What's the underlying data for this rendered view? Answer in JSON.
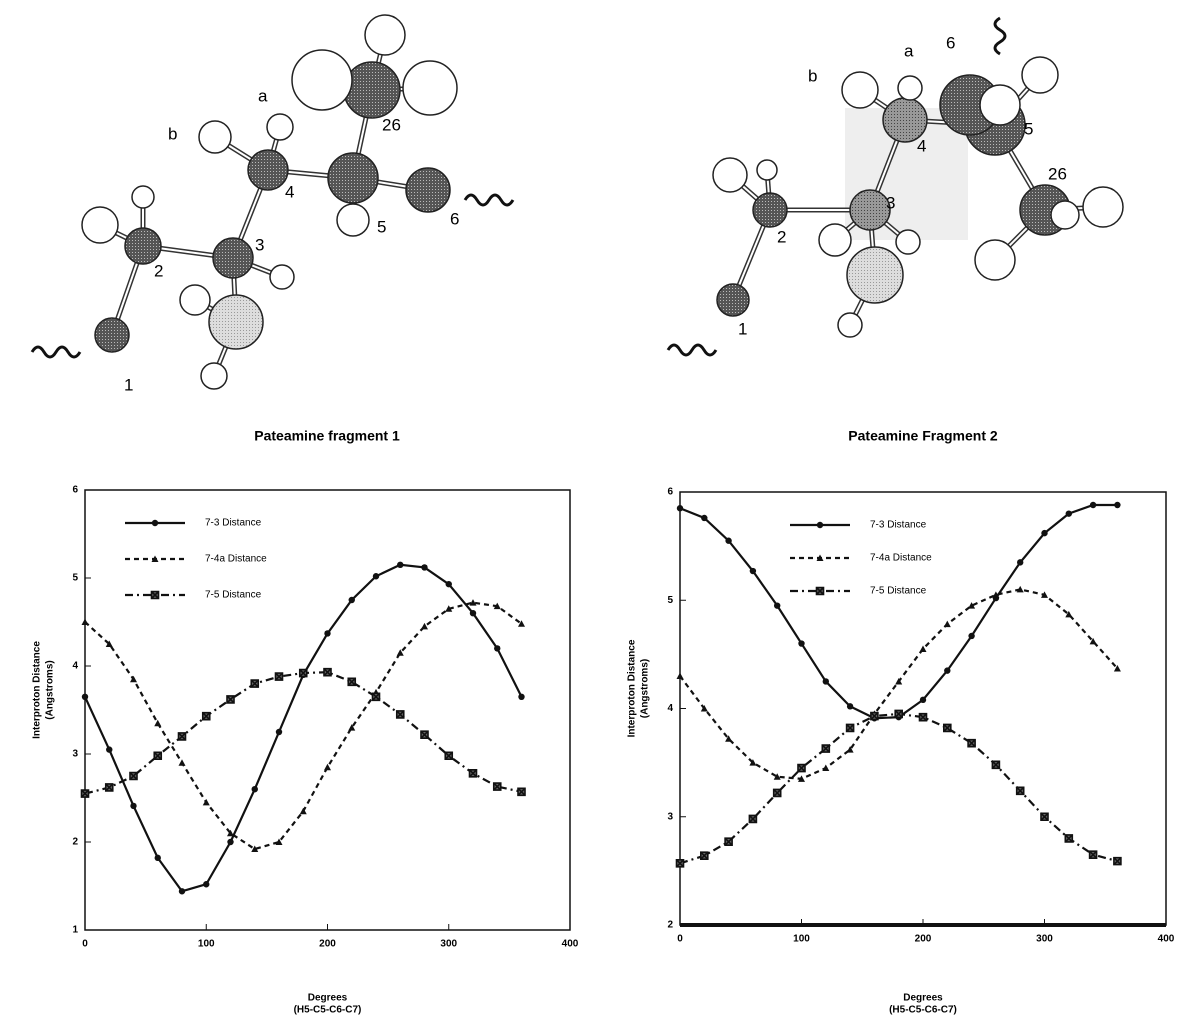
{
  "molecules": [
    {
      "labels": [
        "a",
        "b",
        "1",
        "2",
        "3",
        "4",
        "5",
        "6",
        "26"
      ]
    },
    {
      "labels": [
        "a",
        "b",
        "6",
        "5",
        "4",
        "3",
        "2",
        "1",
        "26"
      ]
    }
  ],
  "chart_data": [
    {
      "type": "line",
      "title": "Pateamine fragment 1",
      "xlabel": [
        "Degrees",
        "(H5-C5-C6-C7)"
      ],
      "ylabel": [
        "Interproton Distance",
        "(Angstroms)"
      ],
      "xlim": [
        0,
        400
      ],
      "xticks": [
        0,
        100,
        200,
        300,
        400
      ],
      "ylim": [
        1,
        6
      ],
      "yticks": [
        1,
        2,
        3,
        4,
        5,
        6
      ],
      "legend": "upper left",
      "x": [
        0,
        20,
        40,
        60,
        80,
        100,
        120,
        140,
        160,
        180,
        200,
        220,
        240,
        260,
        280,
        300,
        320,
        340,
        360
      ],
      "series": [
        {
          "name": "7-3 Distance",
          "color": "#111111",
          "style": "solid",
          "marker": "circle",
          "values": [
            3.65,
            3.05,
            2.41,
            1.82,
            1.44,
            1.52,
            2.0,
            2.6,
            3.25,
            3.9,
            4.37,
            4.75,
            5.02,
            5.15,
            5.12,
            4.93,
            4.6,
            4.2,
            3.65
          ]
        },
        {
          "name": "7-4a Distance",
          "color": "#111111",
          "style": "dashed",
          "marker": "triangle",
          "values": [
            4.5,
            4.25,
            3.85,
            3.35,
            2.9,
            2.45,
            2.1,
            1.92,
            2.0,
            2.35,
            2.85,
            3.3,
            3.7,
            4.15,
            4.45,
            4.65,
            4.72,
            4.68,
            4.48
          ]
        },
        {
          "name": "7-5 Distance",
          "color": "#111111",
          "style": "dashdot",
          "marker": "x",
          "values": [
            2.55,
            2.62,
            2.75,
            2.98,
            3.2,
            3.43,
            3.62,
            3.8,
            3.88,
            3.92,
            3.93,
            3.82,
            3.65,
            3.45,
            3.22,
            2.98,
            2.78,
            2.63,
            2.57
          ]
        }
      ]
    },
    {
      "type": "line",
      "title": "Pateamine Fragment 2",
      "xlabel": [
        "Degrees",
        "(H5-C5-C6-C7)"
      ],
      "ylabel": [
        "Interproton Distance",
        "(Angstroms)"
      ],
      "xlim": [
        0,
        400
      ],
      "xticks": [
        0,
        100,
        200,
        300,
        400
      ],
      "ylim": [
        2,
        6
      ],
      "yticks": [
        2,
        3,
        4,
        5,
        6
      ],
      "legend": "upper center",
      "x": [
        0,
        20,
        40,
        60,
        80,
        100,
        120,
        140,
        160,
        180,
        200,
        220,
        240,
        260,
        280,
        300,
        320,
        340,
        360
      ],
      "series": [
        {
          "name": "7-3 Distance",
          "color": "#111111",
          "style": "solid",
          "marker": "circle",
          "values": [
            5.85,
            5.76,
            5.55,
            5.27,
            4.95,
            4.6,
            4.25,
            4.02,
            3.91,
            3.92,
            4.08,
            4.35,
            4.67,
            5.02,
            5.35,
            5.62,
            5.8,
            5.88,
            5.88
          ]
        },
        {
          "name": "7-4a Distance",
          "color": "#111111",
          "style": "dashed",
          "marker": "triangle",
          "values": [
            4.3,
            4.0,
            3.72,
            3.5,
            3.37,
            3.35,
            3.45,
            3.62,
            3.95,
            4.25,
            4.55,
            4.78,
            4.95,
            5.05,
            5.1,
            5.05,
            4.87,
            4.62,
            4.37
          ]
        },
        {
          "name": "7-5 Distance",
          "color": "#111111",
          "style": "dashdot",
          "marker": "x",
          "values": [
            2.57,
            2.64,
            2.77,
            2.98,
            3.22,
            3.45,
            3.63,
            3.82,
            3.93,
            3.95,
            3.92,
            3.82,
            3.68,
            3.48,
            3.24,
            3.0,
            2.8,
            2.65,
            2.59
          ]
        }
      ]
    }
  ]
}
